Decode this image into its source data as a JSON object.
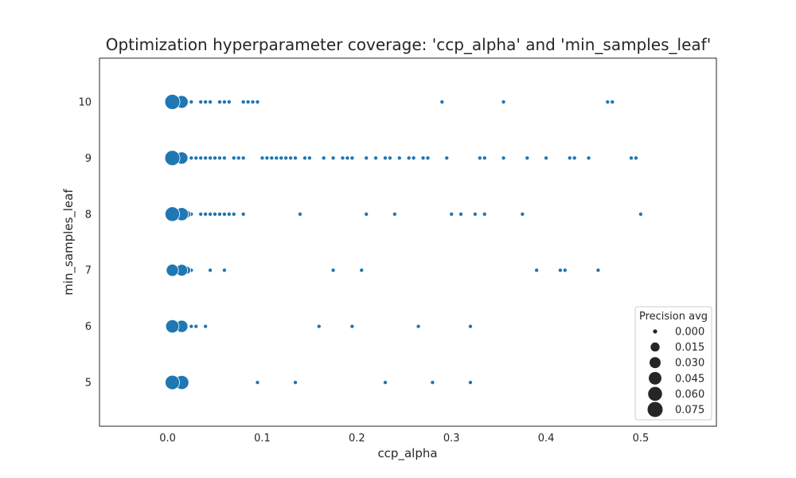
{
  "chart_data": {
    "type": "scatter",
    "title": "Optimization hyperparameter coverage: 'ccp_alpha' and 'min_samples_leaf'",
    "xlabel": "ccp_alpha",
    "ylabel": "min_samples_leaf",
    "xlim": [
      -0.072,
      0.58
    ],
    "ylim": [
      4.22,
      10.78
    ],
    "xticks": [
      "0.0",
      "0.1",
      "0.2",
      "0.3",
      "0.4",
      "0.5"
    ],
    "xtick_values": [
      0,
      0.1,
      0.2,
      0.3,
      0.4,
      0.5
    ],
    "yticks": [
      "5",
      "6",
      "7",
      "8",
      "9",
      "10"
    ],
    "ytick_values": [
      5,
      6,
      7,
      8,
      9,
      10
    ],
    "grid": false,
    "point_color": "#1f77b4",
    "legend": {
      "title": "Precision avg",
      "placement": "lower-right",
      "entries": [
        "0.000",
        "0.015",
        "0.030",
        "0.045",
        "0.060",
        "0.075"
      ],
      "entry_values": [
        0.0,
        0.015,
        0.03,
        0.045,
        0.06,
        0.075
      ]
    },
    "size_max_value": 0.075,
    "series": [
      {
        "min_samples_leaf": 10,
        "points": [
          [
            0.005,
            0.075
          ],
          [
            0.015,
            0.045
          ],
          [
            0.02,
            0.0
          ],
          [
            0.025,
            0.0
          ],
          [
            0.035,
            0.0
          ],
          [
            0.04,
            0.0
          ],
          [
            0.045,
            0.0
          ],
          [
            0.055,
            0.0
          ],
          [
            0.06,
            0.0
          ],
          [
            0.065,
            0.0
          ],
          [
            0.08,
            0.0
          ],
          [
            0.085,
            0.0
          ],
          [
            0.09,
            0.0
          ],
          [
            0.095,
            0.0
          ],
          [
            0.29,
            0.0
          ],
          [
            0.355,
            0.0
          ],
          [
            0.465,
            0.0
          ],
          [
            0.47,
            0.0
          ]
        ]
      },
      {
        "min_samples_leaf": 9,
        "points": [
          [
            0.005,
            0.075
          ],
          [
            0.015,
            0.04
          ],
          [
            0.02,
            0.0
          ],
          [
            0.025,
            0.0
          ],
          [
            0.03,
            0.0
          ],
          [
            0.035,
            0.0
          ],
          [
            0.04,
            0.0
          ],
          [
            0.045,
            0.0
          ],
          [
            0.05,
            0.0
          ],
          [
            0.055,
            0.0
          ],
          [
            0.06,
            0.0
          ],
          [
            0.07,
            0.0
          ],
          [
            0.075,
            0.0
          ],
          [
            0.08,
            0.0
          ],
          [
            0.1,
            0.0
          ],
          [
            0.105,
            0.0
          ],
          [
            0.11,
            0.0
          ],
          [
            0.115,
            0.0
          ],
          [
            0.12,
            0.0
          ],
          [
            0.125,
            0.0
          ],
          [
            0.13,
            0.0
          ],
          [
            0.135,
            0.0
          ],
          [
            0.145,
            0.0
          ],
          [
            0.15,
            0.0
          ],
          [
            0.165,
            0.0
          ],
          [
            0.175,
            0.0
          ],
          [
            0.185,
            0.0
          ],
          [
            0.19,
            0.0
          ],
          [
            0.195,
            0.0
          ],
          [
            0.21,
            0.0
          ],
          [
            0.22,
            0.0
          ],
          [
            0.23,
            0.0
          ],
          [
            0.235,
            0.0
          ],
          [
            0.245,
            0.0
          ],
          [
            0.255,
            0.0
          ],
          [
            0.26,
            0.0
          ],
          [
            0.27,
            0.0
          ],
          [
            0.275,
            0.0
          ],
          [
            0.295,
            0.0
          ],
          [
            0.33,
            0.0
          ],
          [
            0.335,
            0.0
          ],
          [
            0.355,
            0.0
          ],
          [
            0.38,
            0.0
          ],
          [
            0.4,
            0.0
          ],
          [
            0.425,
            0.0
          ],
          [
            0.43,
            0.0
          ],
          [
            0.445,
            0.0
          ],
          [
            0.49,
            0.0
          ],
          [
            0.495,
            0.0
          ]
        ]
      },
      {
        "min_samples_leaf": 8,
        "points": [
          [
            0.005,
            0.068
          ],
          [
            0.015,
            0.05
          ],
          [
            0.02,
            0.01
          ],
          [
            0.025,
            0.0
          ],
          [
            0.035,
            0.0
          ],
          [
            0.04,
            0.0
          ],
          [
            0.045,
            0.0
          ],
          [
            0.05,
            0.0
          ],
          [
            0.055,
            0.0
          ],
          [
            0.06,
            0.0
          ],
          [
            0.065,
            0.0
          ],
          [
            0.07,
            0.0
          ],
          [
            0.08,
            0.0
          ],
          [
            0.14,
            0.0
          ],
          [
            0.21,
            0.0
          ],
          [
            0.24,
            0.0
          ],
          [
            0.3,
            0.0
          ],
          [
            0.31,
            0.0
          ],
          [
            0.325,
            0.0
          ],
          [
            0.335,
            0.0
          ],
          [
            0.375,
            0.0
          ],
          [
            0.5,
            0.0
          ]
        ]
      },
      {
        "min_samples_leaf": 7,
        "points": [
          [
            0.005,
            0.04
          ],
          [
            0.015,
            0.035
          ],
          [
            0.02,
            0.01
          ],
          [
            0.025,
            0.0
          ],
          [
            0.045,
            0.0
          ],
          [
            0.06,
            0.0
          ],
          [
            0.175,
            0.0
          ],
          [
            0.205,
            0.0
          ],
          [
            0.39,
            0.0
          ],
          [
            0.415,
            0.0
          ],
          [
            0.42,
            0.0
          ],
          [
            0.455,
            0.0
          ]
        ]
      },
      {
        "min_samples_leaf": 6,
        "points": [
          [
            0.005,
            0.052
          ],
          [
            0.015,
            0.04
          ],
          [
            0.025,
            0.0
          ],
          [
            0.03,
            0.0
          ],
          [
            0.04,
            0.0
          ],
          [
            0.16,
            0.0
          ],
          [
            0.195,
            0.0
          ],
          [
            0.265,
            0.0
          ],
          [
            0.32,
            0.0
          ]
        ]
      },
      {
        "min_samples_leaf": 5,
        "points": [
          [
            0.005,
            0.065
          ],
          [
            0.015,
            0.06
          ],
          [
            0.095,
            0.0
          ],
          [
            0.135,
            0.0
          ],
          [
            0.23,
            0.0
          ],
          [
            0.28,
            0.0
          ],
          [
            0.32,
            0.0
          ]
        ]
      }
    ]
  }
}
